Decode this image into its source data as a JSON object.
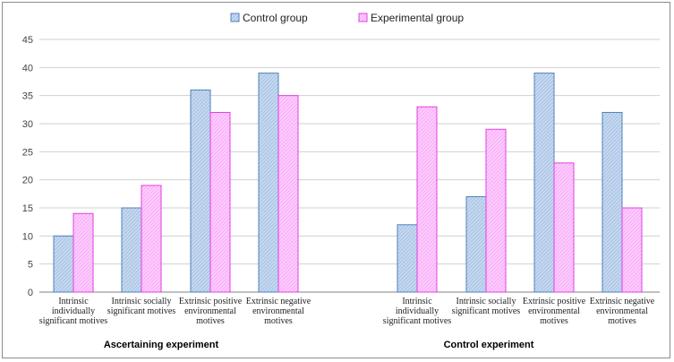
{
  "chart_data": {
    "type": "bar",
    "ylim": [
      0,
      45
    ],
    "yticks": [
      0,
      5,
      10,
      15,
      20,
      25,
      30,
      35,
      40,
      45
    ],
    "grid": true,
    "legend_position": "top",
    "groups": [
      {
        "label": "Ascertaining experiment",
        "categories": [
          [
            "Intrinsic",
            "individually",
            "significant motives"
          ],
          [
            "Intrinsic socially",
            "significant motives"
          ],
          [
            "Extrinsic positive",
            "environmental",
            "motives"
          ],
          [
            "Extrinsic negative",
            "environmental",
            "motives"
          ]
        ]
      },
      {
        "label": "Control experiment",
        "categories": [
          [
            "Intrinsic",
            "individually",
            "significant motives"
          ],
          [
            "Intrinsic socially",
            "significant motives"
          ],
          [
            "Extrinsic positive",
            "environmental",
            "motives"
          ],
          [
            "Extrinsic negative",
            "environmental",
            "motives"
          ]
        ]
      }
    ],
    "series": [
      {
        "name": "Control group",
        "color": "#c5d9f1",
        "stroke": "#4f81bd",
        "values": [
          10,
          15,
          36,
          39,
          12,
          17,
          39,
          32
        ]
      },
      {
        "name": "Experimental group",
        "color": "#ffccff",
        "stroke": "#e040e0",
        "values": [
          14,
          19,
          32,
          35,
          33,
          29,
          23,
          15
        ]
      }
    ]
  }
}
